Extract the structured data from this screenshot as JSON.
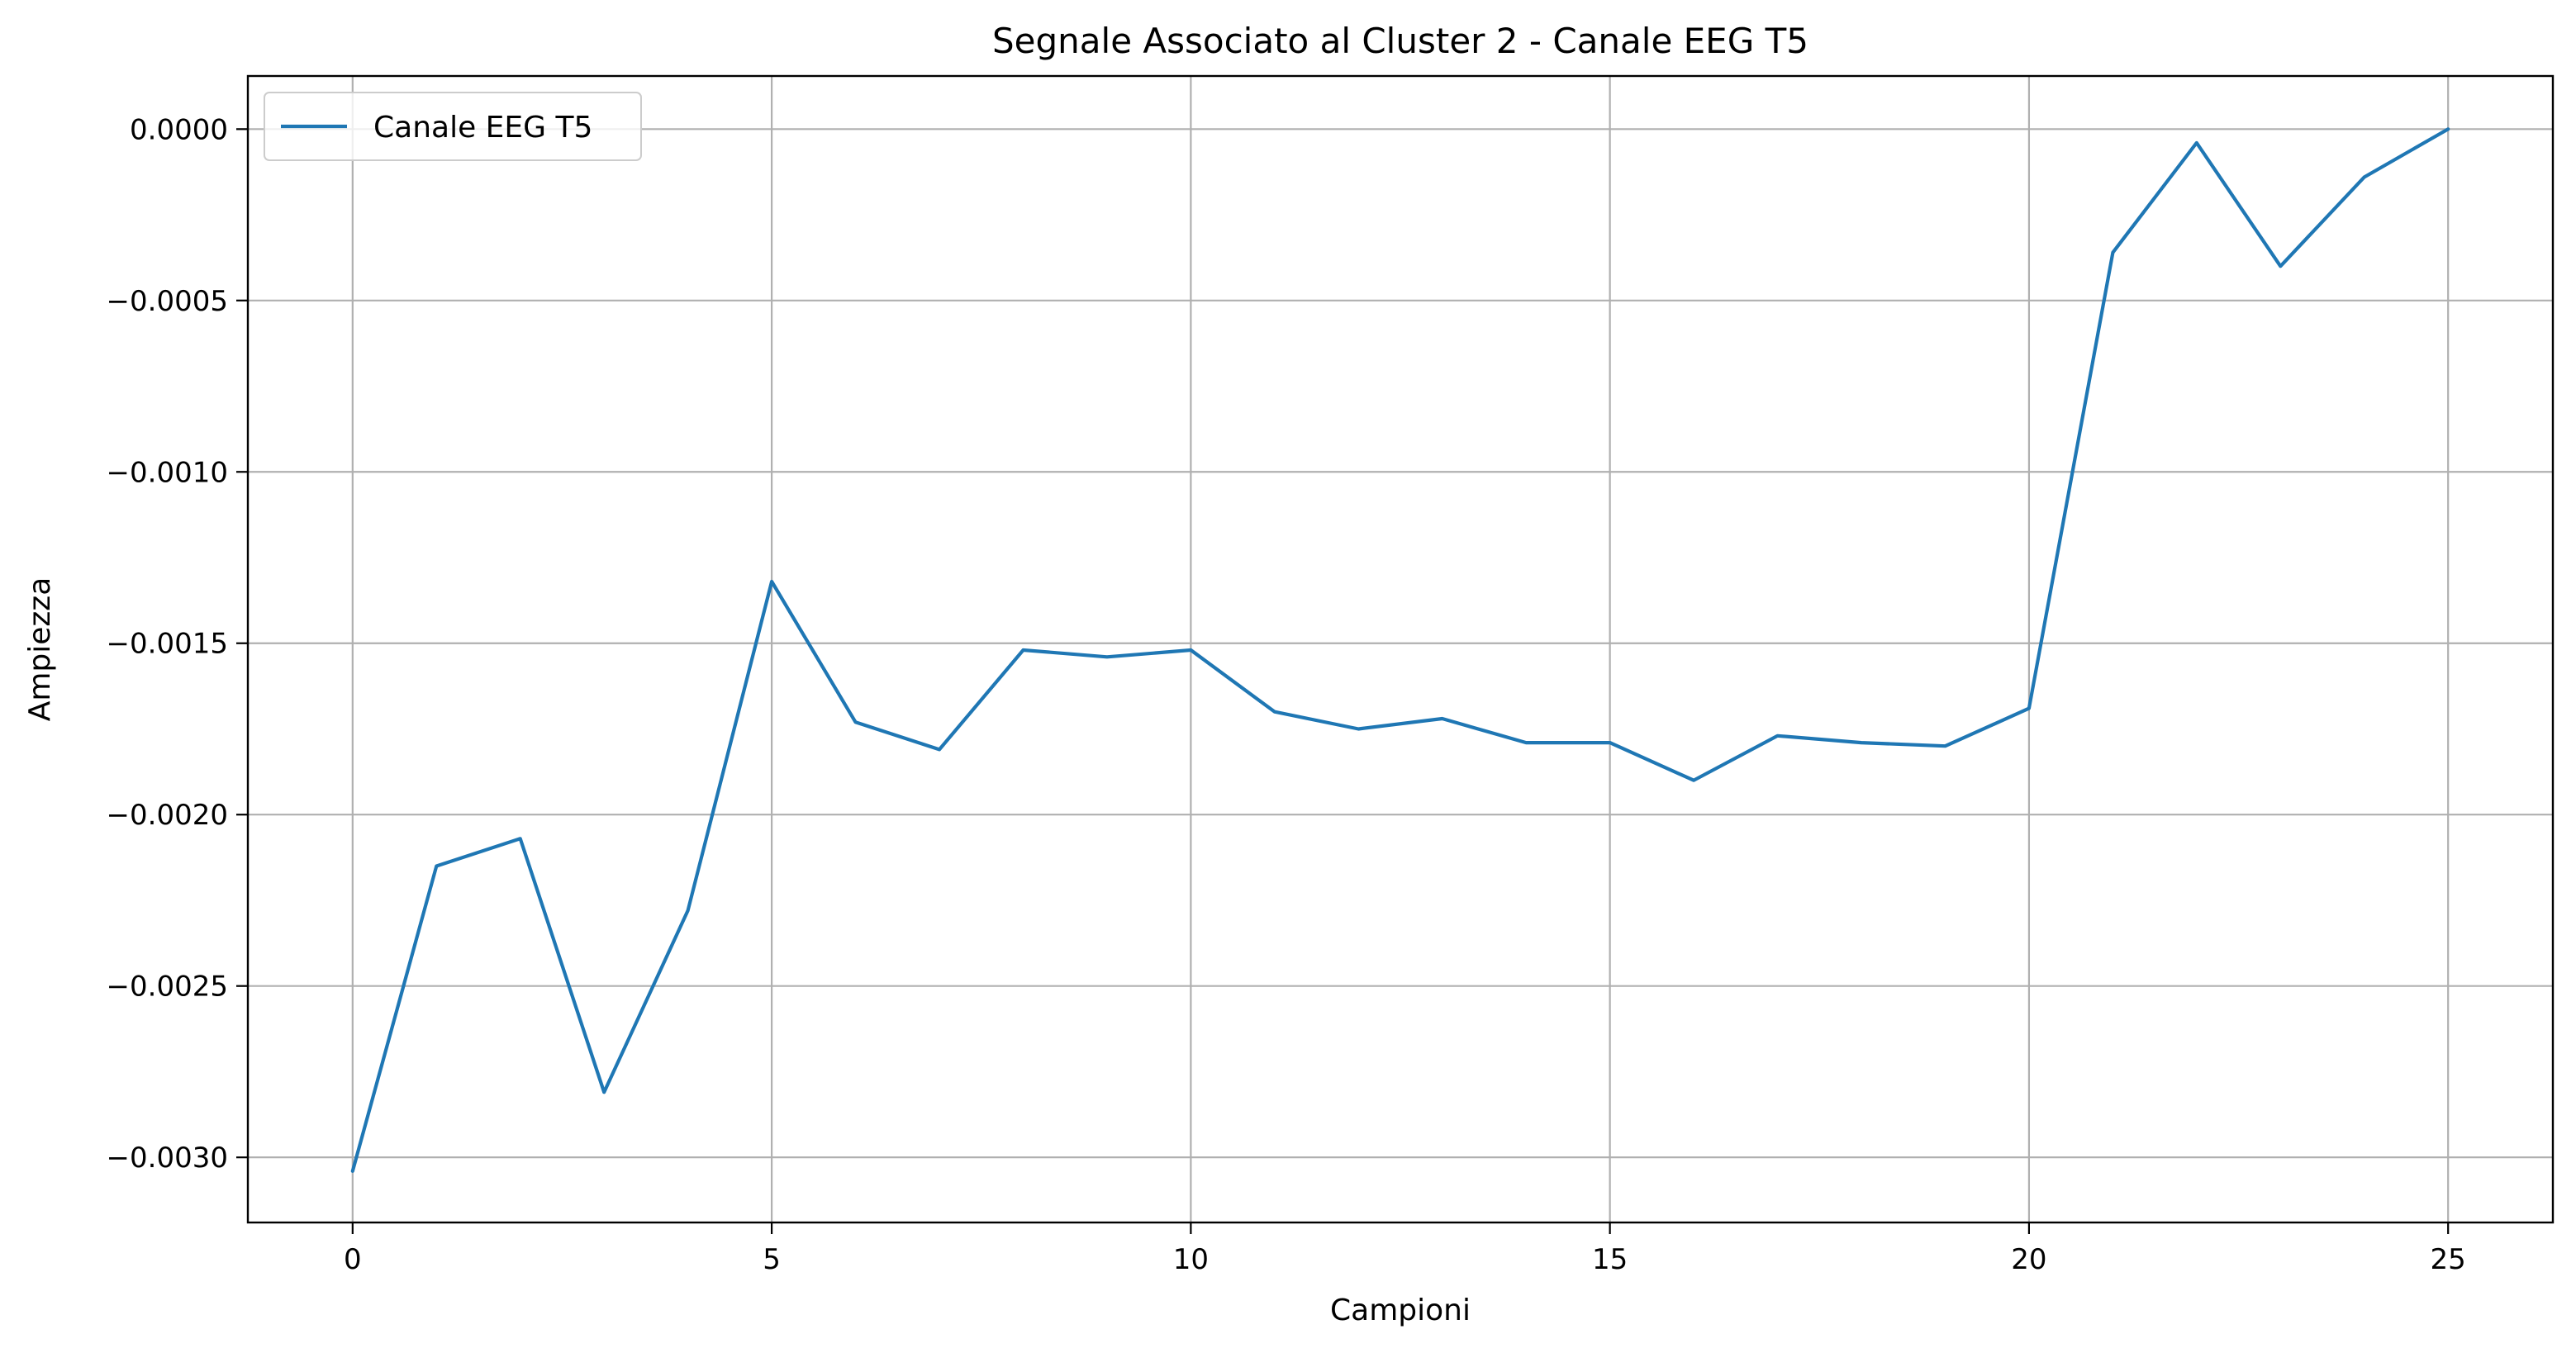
{
  "chart_data": {
    "type": "line",
    "title": "Segnale Associato al Cluster 2 - Canale EEG T5",
    "xlabel": "Campioni",
    "ylabel": "Ampiezza",
    "xlim": [
      -1.25,
      26.25
    ],
    "ylim": [
      -0.00319,
      0.000155
    ],
    "xticks": [
      0,
      5,
      10,
      15,
      20,
      25
    ],
    "xtick_labels": [
      "0",
      "5",
      "10",
      "15",
      "20",
      "25"
    ],
    "yticks": [
      0.0,
      -0.0005,
      -0.001,
      -0.0015,
      -0.002,
      -0.0025,
      -0.003
    ],
    "ytick_labels": [
      "0.0000",
      "−0.0005",
      "−0.0010",
      "−0.0015",
      "−0.0020",
      "−0.0025",
      "−0.0030"
    ],
    "grid": true,
    "legend_position": "top-left",
    "series": [
      {
        "name": "Canale EEG T5",
        "color": "#1f77b4",
        "x": [
          0,
          1,
          2,
          3,
          4,
          5,
          6,
          7,
          8,
          9,
          10,
          11,
          12,
          13,
          14,
          15,
          16,
          17,
          18,
          19,
          20,
          21,
          22,
          23,
          24,
          25
        ],
        "y": [
          -0.00304,
          -0.00215,
          -0.00207,
          -0.00281,
          -0.00228,
          -0.00132,
          -0.00173,
          -0.00181,
          -0.00152,
          -0.00154,
          -0.00152,
          -0.0017,
          -0.00175,
          -0.00172,
          -0.00179,
          -0.00179,
          -0.0019,
          -0.00177,
          -0.00179,
          -0.0018,
          -0.00169,
          -0.00036,
          -4e-05,
          -0.0004,
          -0.00014,
          0.0
        ]
      }
    ]
  }
}
